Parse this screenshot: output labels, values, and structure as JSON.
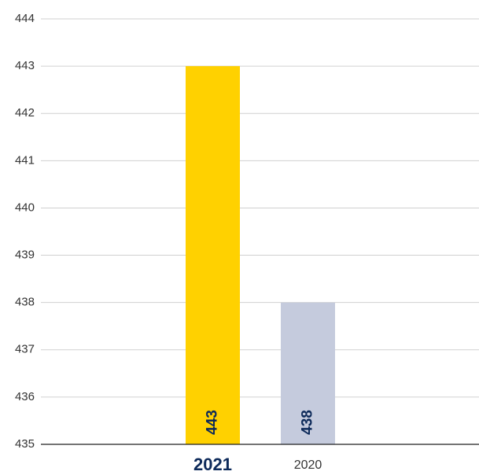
{
  "chart_data": {
    "type": "bar",
    "categories": [
      "2021",
      "2020"
    ],
    "values": [
      443,
      438
    ],
    "colors": [
      "#ffd100",
      "#c5cbdd"
    ],
    "ylim": [
      435,
      444
    ],
    "yticks": [
      435,
      436,
      437,
      438,
      439,
      440,
      441,
      442,
      443,
      444
    ],
    "grid": true
  }
}
